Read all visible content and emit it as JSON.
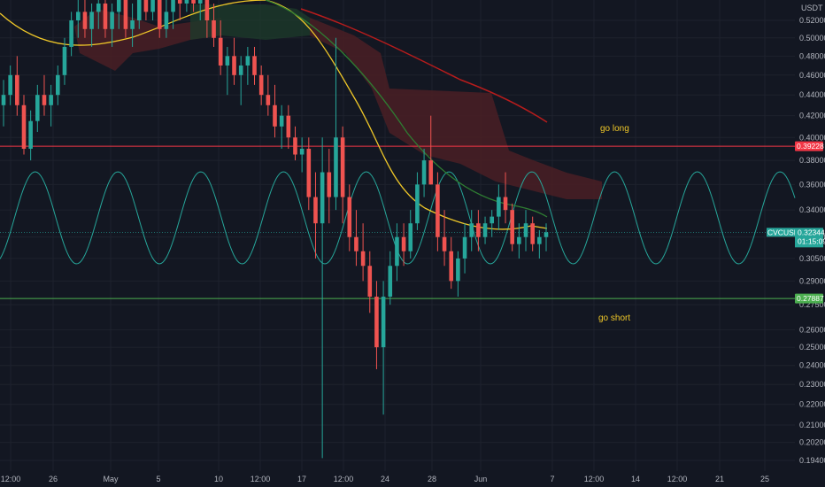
{
  "chart_data": {
    "type": "candlestick",
    "symbol": "CVCUSDT",
    "currency": "USDT",
    "y_scale": "log",
    "ylim": [
      0.192,
      0.54
    ],
    "x_ticks": [
      "12:00",
      "26",
      "May",
      "5",
      "10",
      "12:00",
      "17",
      "12:00",
      "24",
      "28",
      "Jun",
      "7",
      "12:00",
      "14",
      "12:00",
      "21",
      "25"
    ],
    "y_ticks": [
      "0.52000",
      "0.50000",
      "0.48000",
      "0.46000",
      "0.44000",
      "0.42000",
      "0.40000",
      "0.38000",
      "0.36000",
      "0.34000",
      "0.32000",
      "0.30500",
      "0.29000",
      "0.27500",
      "0.26000",
      "0.25000",
      "0.24000",
      "0.23000",
      "0.22000",
      "0.21000",
      "0.20200",
      "0.19400"
    ],
    "price_lines": [
      {
        "value": 0.39228,
        "label": "0.39228",
        "color": "#f23645"
      },
      {
        "value": 0.27887,
        "label": "0.27887",
        "color": "#4caf50"
      }
    ],
    "current_price": {
      "symbol": "CVCUSDT",
      "value": "0.32344",
      "countdown": "01:15:09",
      "color": "#26a69a"
    },
    "annotations": [
      {
        "text": "go long",
        "color": "#f0c828"
      },
      {
        "text": "go short",
        "color": "#f0c828"
      }
    ],
    "candles": [
      [
        0.43,
        0.455,
        0.41,
        0.44
      ],
      [
        0.44,
        0.47,
        0.43,
        0.46
      ],
      [
        0.46,
        0.48,
        0.42,
        0.43
      ],
      [
        0.43,
        0.44,
        0.385,
        0.39
      ],
      [
        0.39,
        0.425,
        0.38,
        0.415
      ],
      [
        0.415,
        0.45,
        0.405,
        0.44
      ],
      [
        0.44,
        0.46,
        0.42,
        0.43
      ],
      [
        0.43,
        0.45,
        0.41,
        0.44
      ],
      [
        0.44,
        0.47,
        0.43,
        0.46
      ],
      [
        0.46,
        0.5,
        0.45,
        0.49
      ],
      [
        0.49,
        0.53,
        0.48,
        0.52
      ],
      [
        0.52,
        0.55,
        0.5,
        0.53
      ],
      [
        0.53,
        0.55,
        0.5,
        0.51
      ],
      [
        0.51,
        0.54,
        0.49,
        0.53
      ],
      [
        0.53,
        0.56,
        0.51,
        0.54
      ],
      [
        0.54,
        0.56,
        0.5,
        0.51
      ],
      [
        0.51,
        0.54,
        0.49,
        0.53
      ],
      [
        0.53,
        0.56,
        0.51,
        0.55
      ],
      [
        0.55,
        0.56,
        0.5,
        0.51
      ],
      [
        0.51,
        0.54,
        0.49,
        0.52
      ],
      [
        0.52,
        0.56,
        0.51,
        0.55
      ],
      [
        0.55,
        0.56,
        0.52,
        0.53
      ],
      [
        0.53,
        0.56,
        0.52,
        0.55
      ],
      [
        0.55,
        0.56,
        0.5,
        0.51
      ],
      [
        0.51,
        0.55,
        0.5,
        0.53
      ],
      [
        0.53,
        0.56,
        0.51,
        0.55
      ],
      [
        0.55,
        0.56,
        0.52,
        0.54
      ],
      [
        0.54,
        0.56,
        0.53,
        0.55
      ],
      [
        0.55,
        0.56,
        0.53,
        0.54
      ],
      [
        0.54,
        0.56,
        0.52,
        0.55
      ],
      [
        0.55,
        0.56,
        0.5,
        0.52
      ],
      [
        0.52,
        0.54,
        0.49,
        0.5
      ],
      [
        0.5,
        0.52,
        0.46,
        0.47
      ],
      [
        0.47,
        0.49,
        0.44,
        0.48
      ],
      [
        0.48,
        0.5,
        0.45,
        0.46
      ],
      [
        0.46,
        0.48,
        0.43,
        0.47
      ],
      [
        0.47,
        0.49,
        0.45,
        0.48
      ],
      [
        0.48,
        0.49,
        0.45,
        0.46
      ],
      [
        0.46,
        0.47,
        0.43,
        0.44
      ],
      [
        0.44,
        0.46,
        0.42,
        0.43
      ],
      [
        0.43,
        0.45,
        0.4,
        0.41
      ],
      [
        0.41,
        0.43,
        0.39,
        0.42
      ],
      [
        0.42,
        0.43,
        0.39,
        0.4
      ],
      [
        0.4,
        0.41,
        0.38,
        0.385
      ],
      [
        0.385,
        0.4,
        0.37,
        0.39
      ],
      [
        0.39,
        0.4,
        0.34,
        0.35
      ],
      [
        0.35,
        0.37,
        0.305,
        0.33
      ],
      [
        0.33,
        0.4,
        0.195,
        0.37
      ],
      [
        0.37,
        0.39,
        0.33,
        0.35
      ],
      [
        0.35,
        0.5,
        0.34,
        0.4
      ],
      [
        0.4,
        0.41,
        0.33,
        0.35
      ],
      [
        0.35,
        0.36,
        0.31,
        0.32
      ],
      [
        0.32,
        0.34,
        0.3,
        0.31
      ],
      [
        0.31,
        0.33,
        0.29,
        0.3
      ],
      [
        0.3,
        0.31,
        0.27,
        0.28
      ],
      [
        0.28,
        0.29,
        0.238,
        0.25
      ],
      [
        0.25,
        0.29,
        0.215,
        0.28
      ],
      [
        0.28,
        0.31,
        0.275,
        0.3
      ],
      [
        0.3,
        0.33,
        0.29,
        0.32
      ],
      [
        0.32,
        0.33,
        0.3,
        0.31
      ],
      [
        0.31,
        0.34,
        0.305,
        0.33
      ],
      [
        0.33,
        0.37,
        0.325,
        0.36
      ],
      [
        0.36,
        0.39,
        0.35,
        0.38
      ],
      [
        0.38,
        0.42,
        0.36,
        0.36
      ],
      [
        0.36,
        0.37,
        0.31,
        0.32
      ],
      [
        0.32,
        0.34,
        0.3,
        0.31
      ],
      [
        0.31,
        0.32,
        0.285,
        0.29
      ],
      [
        0.29,
        0.31,
        0.28,
        0.305
      ],
      [
        0.305,
        0.33,
        0.295,
        0.32
      ],
      [
        0.32,
        0.34,
        0.31,
        0.33
      ],
      [
        0.33,
        0.34,
        0.31,
        0.32
      ],
      [
        0.32,
        0.335,
        0.315,
        0.33
      ],
      [
        0.33,
        0.34,
        0.32,
        0.335
      ],
      [
        0.335,
        0.36,
        0.325,
        0.35
      ],
      [
        0.35,
        0.37,
        0.33,
        0.34
      ],
      [
        0.34,
        0.345,
        0.31,
        0.315
      ],
      [
        0.315,
        0.33,
        0.305,
        0.32
      ],
      [
        0.32,
        0.34,
        0.31,
        0.33
      ],
      [
        0.33,
        0.335,
        0.31,
        0.315
      ],
      [
        0.315,
        0.325,
        0.305,
        0.32
      ],
      [
        0.32,
        0.33,
        0.31,
        0.3234
      ]
    ]
  }
}
